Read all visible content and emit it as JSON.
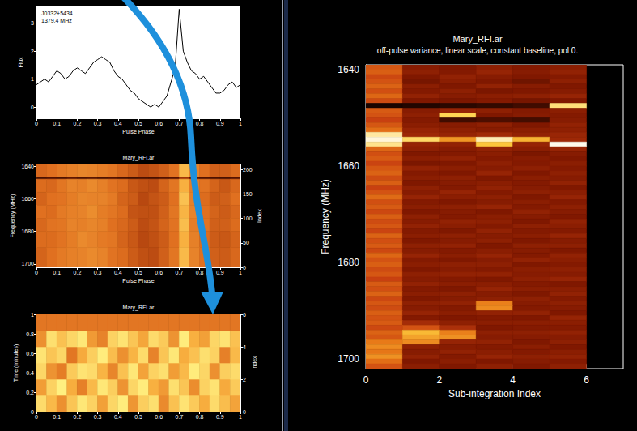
{
  "chart_data": [
    {
      "type": "line",
      "annotations": [
        "J0332+5434",
        "1379.4 MHz"
      ],
      "xlabel": "Pulse Phase",
      "ylabel": "Flux",
      "x": [
        0,
        0.02,
        0.04,
        0.06,
        0.08,
        0.1,
        0.12,
        0.14,
        0.16,
        0.18,
        0.2,
        0.22,
        0.24,
        0.26,
        0.28,
        0.3,
        0.32,
        0.34,
        0.36,
        0.38,
        0.4,
        0.42,
        0.44,
        0.46,
        0.48,
        0.5,
        0.52,
        0.54,
        0.56,
        0.58,
        0.6,
        0.62,
        0.64,
        0.66,
        0.68,
        0.7,
        0.72,
        0.74,
        0.76,
        0.78,
        0.8,
        0.82,
        0.84,
        0.86,
        0.88,
        0.9,
        0.92,
        0.94,
        0.96,
        0.98,
        1
      ],
      "values": [
        0.8,
        0.9,
        1.0,
        0.9,
        1.1,
        1.3,
        1.2,
        1.0,
        1.1,
        1.3,
        1.4,
        1.3,
        1.2,
        1.4,
        1.6,
        1.7,
        1.8,
        1.7,
        1.6,
        1.3,
        1.1,
        1.0,
        0.8,
        0.6,
        0.5,
        0.3,
        0.2,
        0.1,
        0.0,
        0.1,
        0.0,
        0.2,
        0.4,
        0.9,
        1.4,
        3.5,
        2.0,
        1.6,
        1.3,
        1.2,
        1.0,
        1.1,
        0.9,
        0.7,
        0.5,
        0.5,
        0.6,
        0.8,
        0.9,
        0.7,
        0.8
      ],
      "color": "#000000",
      "xlim": [
        0,
        1
      ],
      "xticks": [
        0,
        0.1,
        0.2,
        0.3,
        0.4,
        0.5,
        0.6,
        0.7,
        0.8,
        0.9,
        1
      ],
      "ylim": [
        -0.4,
        3.6
      ],
      "yticks": [
        0,
        1,
        2,
        3
      ],
      "grid": false
    },
    {
      "type": "heatmap",
      "title": "Mary_RFI.ar",
      "xlabel": "Pulse Phase",
      "ylabel": "Frequency (MHz)",
      "y2label": "Index",
      "x_bins": [
        0,
        0.05,
        0.1,
        0.15,
        0.2,
        0.25,
        0.3,
        0.35,
        0.4,
        0.45,
        0.5,
        0.55,
        0.6,
        0.65,
        0.7,
        0.75,
        0.8,
        0.85,
        0.9,
        0.95,
        1
      ],
      "y_bins": [
        1639,
        1647,
        1648,
        1656,
        1664,
        1672,
        1680,
        1690,
        1702
      ],
      "values": [
        [
          4.8,
          5.0,
          5.3,
          5.5,
          5.7,
          5.6,
          5.4,
          5.2,
          4.8,
          4.5,
          4.1,
          4.3,
          4.6,
          5.1,
          7.2,
          5.6,
          5.0,
          4.6,
          4.6,
          4.9
        ],
        [
          1.5,
          1.8,
          1.6,
          2.0,
          1.7,
          1.9,
          1.6,
          1.8,
          1.5,
          1.4,
          1.6,
          1.5,
          1.7,
          1.8,
          3.5,
          1.9,
          1.7,
          1.6,
          1.5,
          1.8
        ],
        [
          4.9,
          4.8,
          5.2,
          5.6,
          5.5,
          5.8,
          5.5,
          5.1,
          4.9,
          4.4,
          4.2,
          4.1,
          4.7,
          5.2,
          7.0,
          5.4,
          5.1,
          4.7,
          4.4,
          4.8
        ],
        [
          4.7,
          5.0,
          5.1,
          5.4,
          5.7,
          5.6,
          5.6,
          5.3,
          4.7,
          4.5,
          4.0,
          4.3,
          4.5,
          5.0,
          7.4,
          5.5,
          4.9,
          4.5,
          4.6,
          5.0
        ],
        [
          5.0,
          4.9,
          5.3,
          5.5,
          5.6,
          5.9,
          5.4,
          5.2,
          4.9,
          4.3,
          4.2,
          4.2,
          4.6,
          5.2,
          7.1,
          5.6,
          5.0,
          4.7,
          4.5,
          4.8
        ],
        [
          4.8,
          5.1,
          5.2,
          5.6,
          5.5,
          5.7,
          5.5,
          5.0,
          4.8,
          4.5,
          4.1,
          4.3,
          4.7,
          5.1,
          7.3,
          5.4,
          5.1,
          4.6,
          4.6,
          4.9
        ],
        [
          4.9,
          4.9,
          5.1,
          5.4,
          5.8,
          5.6,
          5.3,
          5.2,
          4.7,
          4.4,
          4.0,
          4.2,
          4.5,
          5.0,
          7.0,
          5.5,
          4.9,
          4.5,
          4.4,
          4.7
        ],
        [
          4.7,
          5.0,
          5.3,
          5.5,
          5.6,
          5.8,
          5.6,
          5.1,
          4.9,
          4.5,
          4.2,
          4.1,
          4.6,
          5.2,
          7.2,
          5.6,
          5.0,
          4.6,
          4.5,
          4.8
        ]
      ],
      "zlim": [
        0,
        10
      ],
      "xlim": [
        0,
        1
      ],
      "xticks": [
        0,
        0.1,
        0.2,
        0.3,
        0.4,
        0.5,
        0.6,
        0.7,
        0.8,
        0.9,
        1
      ],
      "ylim": [
        1702,
        1639
      ],
      "yticks": [
        1640,
        1660,
        1680,
        1700
      ],
      "y2lim": [
        0,
        210
      ],
      "y2ticks": [
        0,
        50,
        100,
        150,
        200
      ],
      "grid": false
    },
    {
      "type": "heatmap",
      "title": "Mary_RFI.ar",
      "ylabel": "Time (minutes)",
      "y2label": "Index",
      "axis": "y2",
      "x_bins": [
        0,
        0.05,
        0.1,
        0.15,
        0.2,
        0.25,
        0.3,
        0.35,
        0.4,
        0.45,
        0.5,
        0.55,
        0.6,
        0.65,
        0.7,
        0.75,
        0.8,
        0.85,
        0.9,
        0.95,
        1
      ],
      "y_bins": [
        0,
        1,
        2,
        3,
        4,
        5,
        6
      ],
      "values": [
        [
          8.0,
          7.2,
          6.0,
          7.5,
          8.3,
          7.8,
          6.5,
          7.9,
          8.4,
          6.2,
          7.7,
          8.1,
          5.8,
          7.4,
          8.2,
          7.6,
          6.9,
          8.0,
          7.3,
          6.6
        ],
        [
          6.4,
          7.8,
          8.5,
          6.9,
          5.5,
          7.2,
          8.3,
          7.7,
          6.1,
          7.9,
          8.4,
          7.0,
          6.3,
          8.1,
          7.5,
          5.9,
          7.8,
          8.2,
          6.8,
          7.6
        ],
        [
          7.9,
          6.1,
          5.4,
          7.6,
          8.2,
          8.0,
          7.1,
          5.7,
          7.4,
          8.3,
          6.6,
          7.8,
          8.1,
          6.4,
          7.2,
          8.4,
          7.9,
          6.0,
          7.7,
          8.0
        ],
        [
          8.2,
          7.5,
          7.9,
          5.2,
          6.8,
          7.7,
          8.4,
          7.3,
          6.0,
          7.1,
          8.0,
          5.6,
          7.5,
          8.3,
          6.9,
          7.4,
          8.1,
          7.8,
          5.5,
          7.2
        ],
        [
          6.0,
          8.1,
          7.4,
          7.9,
          8.3,
          6.3,
          5.6,
          7.8,
          8.2,
          7.5,
          6.7,
          8.0,
          7.6,
          6.1,
          8.4,
          7.0,
          6.5,
          7.9,
          8.2,
          7.4
        ],
        [
          5.2,
          5.2,
          5.2,
          5.2,
          5.2,
          5.2,
          5.2,
          5.2,
          5.2,
          5.2,
          5.2,
          5.2,
          5.2,
          5.2,
          5.2,
          5.2,
          5.2,
          5.2,
          5.2,
          5.2
        ]
      ],
      "zlim": [
        0,
        10
      ],
      "xlim": [
        0,
        1
      ],
      "xticks": [
        0,
        0.1,
        0.2,
        0.3,
        0.4,
        0.5,
        0.6,
        0.7,
        0.8,
        0.9,
        1
      ],
      "ylim": [
        0,
        1
      ],
      "yticks": [
        0,
        0.2,
        0.4,
        0.6,
        0.8,
        1
      ],
      "y2lim": [
        0,
        6
      ],
      "y2ticks": [
        0,
        2,
        4,
        6
      ],
      "grid": false
    },
    {
      "type": "heatmap",
      "title": "Mary_RFI.ar",
      "subtitle": "off-pulse variance, linear scale, constant baseline, pol 0.",
      "xlabel": "Sub-integration Index",
      "ylabel": "Frequency (MHz)",
      "x_bins": [
        0,
        1,
        2,
        3,
        4,
        5,
        6
      ],
      "y_bins": [
        1639,
        1640,
        1641,
        1642,
        1643,
        1644,
        1645,
        1646,
        1647,
        1648,
        1649,
        1650,
        1651,
        1652,
        1653,
        1654,
        1655,
        1656,
        1657,
        1658,
        1659,
        1660,
        1661,
        1662,
        1663,
        1664,
        1665,
        1666,
        1667,
        1668,
        1669,
        1670,
        1671,
        1672,
        1673,
        1674,
        1675,
        1676,
        1677,
        1678,
        1679,
        1680,
        1681,
        1682,
        1683,
        1684,
        1685,
        1686,
        1687,
        1688,
        1689,
        1690,
        1691,
        1692,
        1693,
        1694,
        1695,
        1696,
        1697,
        1698,
        1699,
        1700,
        1701,
        1702
      ],
      "values": [
        [
          5.6,
          3.2,
          3.0,
          3.4,
          3.1,
          3.3
        ],
        [
          5.8,
          3.4,
          3.1,
          3.6,
          3.2,
          3.5
        ],
        [
          5.2,
          3.0,
          3.5,
          3.2,
          3.0,
          3.1
        ],
        [
          5.5,
          2.8,
          3.3,
          3.0,
          2.6,
          3.4
        ],
        [
          5.9,
          3.3,
          3.0,
          3.5,
          3.2,
          3.0
        ],
        [
          5.4,
          3.1,
          3.4,
          2.9,
          3.0,
          3.2
        ],
        [
          6.0,
          3.5,
          3.2,
          3.3,
          3.4,
          3.6
        ],
        [
          5.3,
          3.0,
          2.9,
          3.1,
          2.8,
          3.0
        ],
        [
          0.6,
          0.8,
          1.0,
          1.2,
          1.5,
          8.6
        ],
        [
          5.7,
          3.2,
          3.6,
          3.4,
          3.1,
          3.3
        ],
        [
          5.5,
          3.4,
          8.2,
          3.0,
          3.2,
          3.1
        ],
        [
          5.0,
          3.1,
          1.5,
          1.8,
          1.6,
          3.2
        ],
        [
          5.6,
          3.3,
          3.2,
          3.4,
          3.0,
          3.5
        ],
        [
          6.2,
          3.6,
          3.4,
          3.2,
          3.3,
          3.4
        ],
        [
          9.0,
          3.8,
          3.6,
          3.9,
          3.5,
          3.7
        ],
        [
          9.6,
          8.4,
          7.0,
          9.2,
          7.5,
          3.8
        ],
        [
          8.8,
          3.6,
          3.5,
          7.8,
          3.6,
          9.8
        ],
        [
          6.0,
          3.4,
          3.2,
          3.5,
          3.3,
          3.6
        ],
        [
          5.4,
          3.0,
          3.1,
          3.3,
          2.9,
          3.2
        ],
        [
          5.7,
          3.3,
          3.5,
          3.1,
          3.2,
          3.0
        ],
        [
          5.1,
          2.9,
          3.0,
          3.4,
          3.1,
          3.3
        ],
        [
          5.6,
          3.5,
          3.3,
          3.2,
          3.4,
          3.1
        ],
        [
          5.9,
          3.1,
          3.0,
          3.6,
          3.0,
          3.4
        ],
        [
          5.3,
          3.3,
          3.4,
          3.0,
          3.3,
          3.2
        ],
        [
          5.8,
          3.0,
          3.2,
          3.3,
          3.1,
          3.5
        ],
        [
          5.0,
          3.4,
          3.1,
          3.5,
          3.2,
          3.0
        ],
        [
          5.5,
          3.2,
          3.6,
          3.1,
          3.4,
          3.3
        ],
        [
          6.1,
          3.6,
          3.3,
          3.4,
          3.0,
          3.6
        ],
        [
          5.4,
          3.1,
          3.0,
          3.2,
          3.3,
          3.1
        ],
        [
          5.7,
          3.3,
          3.4,
          3.6,
          3.1,
          3.4
        ],
        [
          5.2,
          3.0,
          3.2,
          3.0,
          3.5,
          3.2
        ],
        [
          5.8,
          3.4,
          3.1,
          3.3,
          3.2,
          3.0
        ],
        [
          5.3,
          3.2,
          3.5,
          3.4,
          3.0,
          3.5
        ],
        [
          5.6,
          3.5,
          3.3,
          3.1,
          3.4,
          3.3
        ],
        [
          5.1,
          3.1,
          3.0,
          3.5,
          3.1,
          3.1
        ],
        [
          5.9,
          3.3,
          3.4,
          3.2,
          3.3,
          3.6
        ],
        [
          5.4,
          3.0,
          3.2,
          3.4,
          3.0,
          3.2
        ],
        [
          5.7,
          3.4,
          3.5,
          3.0,
          3.4,
          3.4
        ],
        [
          5.2,
          3.2,
          3.1,
          3.3,
          3.2,
          3.0
        ],
        [
          6.0,
          3.6,
          3.3,
          3.6,
          3.1,
          3.5
        ],
        [
          5.5,
          3.1,
          3.0,
          3.2,
          3.5,
          3.3
        ],
        [
          5.8,
          3.3,
          3.4,
          3.4,
          3.0,
          3.1
        ],
        [
          5.3,
          3.0,
          3.2,
          3.1,
          3.3,
          3.4
        ],
        [
          5.6,
          3.4,
          3.5,
          3.5,
          3.2,
          3.2
        ],
        [
          5.0,
          3.2,
          3.1,
          3.0,
          3.4,
          3.6
        ],
        [
          5.7,
          3.5,
          3.3,
          3.3,
          3.1,
          3.0
        ],
        [
          5.4,
          3.1,
          3.0,
          3.6,
          3.3,
          3.3
        ],
        [
          5.9,
          3.3,
          3.4,
          3.2,
          3.0,
          3.5
        ],
        [
          5.2,
          3.0,
          3.2,
          3.4,
          3.4,
          3.1
        ],
        [
          5.6,
          3.4,
          3.5,
          6.6,
          3.2,
          3.4
        ],
        [
          5.3,
          3.2,
          3.1,
          6.8,
          3.1,
          3.2
        ],
        [
          5.8,
          3.6,
          3.3,
          3.5,
          3.5,
          3.0
        ],
        [
          5.5,
          3.1,
          3.0,
          3.1,
          3.0,
          3.6
        ],
        [
          5.7,
          4.0,
          3.4,
          3.3,
          3.3,
          3.3
        ],
        [
          5.2,
          5.5,
          4.2,
          3.0,
          3.1,
          3.1
        ],
        [
          5.9,
          7.6,
          6.6,
          3.4,
          3.4,
          3.5
        ],
        [
          5.6,
          7.2,
          6.9,
          3.2,
          3.2,
          3.2
        ],
        [
          6.5,
          6.8,
          3.6,
          3.5,
          3.0,
          3.4
        ],
        [
          6.8,
          3.4,
          3.2,
          3.1,
          3.3,
          3.0
        ],
        [
          6.4,
          3.2,
          3.5,
          3.3,
          3.1,
          3.3
        ],
        [
          6.9,
          3.5,
          3.1,
          3.6,
          3.4,
          3.5
        ],
        [
          6.2,
          3.0,
          3.3,
          3.0,
          3.2,
          3.1
        ],
        [
          5.5,
          3.3,
          3.0,
          3.4,
          3.0,
          3.4
        ]
      ],
      "zlim": [
        0,
        10
      ],
      "xlim": [
        0,
        7
      ],
      "xticks": [
        0,
        2,
        4,
        6
      ],
      "ylim": [
        1702,
        1639
      ],
      "yticks": [
        1640,
        1660,
        1680,
        1700
      ],
      "grid": false
    }
  ]
}
